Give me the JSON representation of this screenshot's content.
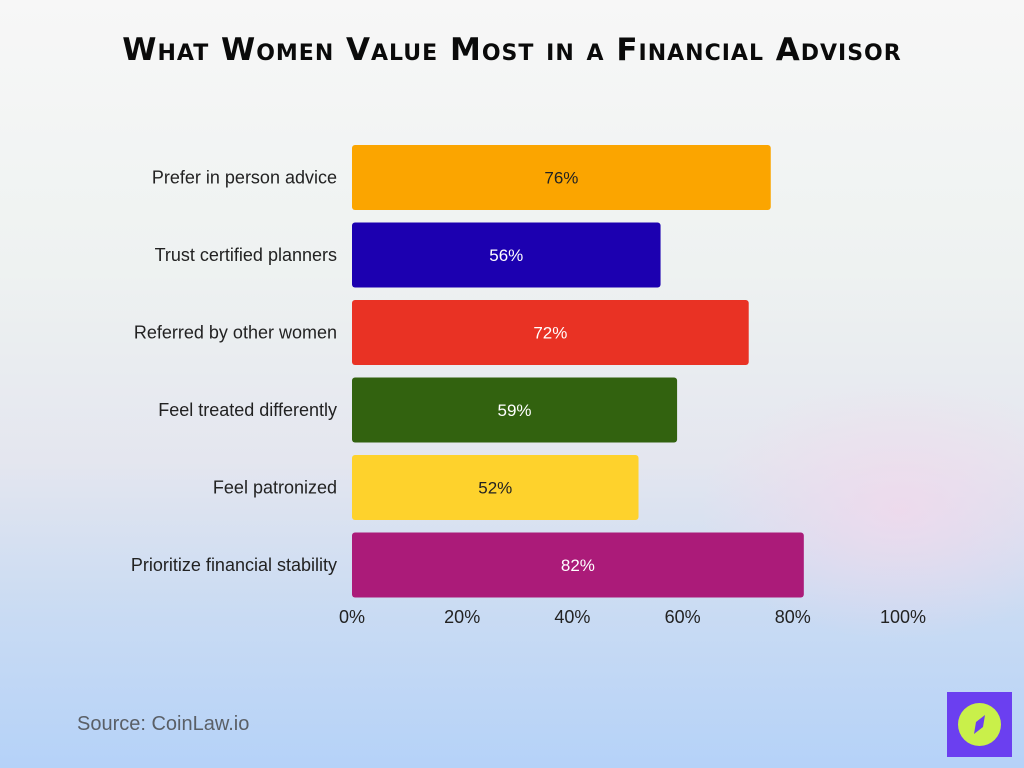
{
  "chart_data": {
    "type": "bar",
    "orientation": "horizontal",
    "title": "What Women Value Most in a Financial Advisor",
    "categories": [
      "Prefer in person advice",
      "Trust certified planners",
      "Referred by other women",
      "Feel treated differently",
      "Feel patronized",
      "Prioritize financial stability"
    ],
    "values": [
      76,
      56,
      72,
      59,
      52,
      82
    ],
    "data_labels": [
      "76%",
      "56%",
      "72%",
      "59%",
      "52%",
      "82%"
    ],
    "colors": [
      "#fba500",
      "#1c00b0",
      "#e93224",
      "#32620f",
      "#fed22c",
      "#ab1b79"
    ],
    "label_colors": [
      "#222222",
      "#ffffff",
      "#ffffff",
      "#ffffff",
      "#222222",
      "#ffffff"
    ],
    "xlim": [
      0,
      100
    ],
    "xticks": [
      "0%",
      "20%",
      "40%",
      "60%",
      "80%",
      "100%"
    ],
    "xtick_values": [
      0,
      20,
      40,
      60,
      80,
      100
    ],
    "grid": false,
    "legend": "none"
  },
  "footer": {
    "source": "Source: CoinLaw.io"
  },
  "logo": {
    "icon": "compass-icon",
    "color": "#6b3ff0",
    "accent": "#c9f04a"
  }
}
